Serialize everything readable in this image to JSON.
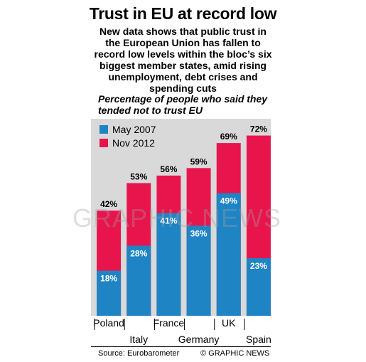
{
  "title": "Trust in EU at record low",
  "subtitle": "New data shows that public trust in the European Union has fallen to record low levels within the bloc’s six biggest member states, amid rising unemployment, debt crises and spending cuts",
  "caption": "Percentage of people who said they tended not to trust EU",
  "source": "Source: Eurobarometer",
  "credit": "© GRAPHIC NEWS",
  "watermark": "GRAPHIC NEWS",
  "colors": {
    "may2007": "#1f84c4",
    "nov2012": "#e8154d",
    "panel": "#d9d9d9"
  },
  "chart_data": {
    "type": "bar",
    "categories": [
      "Poland",
      "Italy",
      "France",
      "Germany",
      "UK",
      "Spain"
    ],
    "series": [
      {
        "name": "May 2007",
        "values": [
          18,
          28,
          41,
          36,
          49,
          23
        ],
        "labels": [
          "18%",
          "28%",
          "41%",
          "36%",
          "49%",
          "23%"
        ]
      },
      {
        "name": "Nov 2012",
        "values": [
          42,
          53,
          56,
          59,
          69,
          72
        ],
        "labels": [
          "42%",
          "53%",
          "56%",
          "59%",
          "69%",
          "72%"
        ]
      }
    ],
    "ylim": [
      0,
      80
    ],
    "legend": "top-left",
    "grid": false
  }
}
